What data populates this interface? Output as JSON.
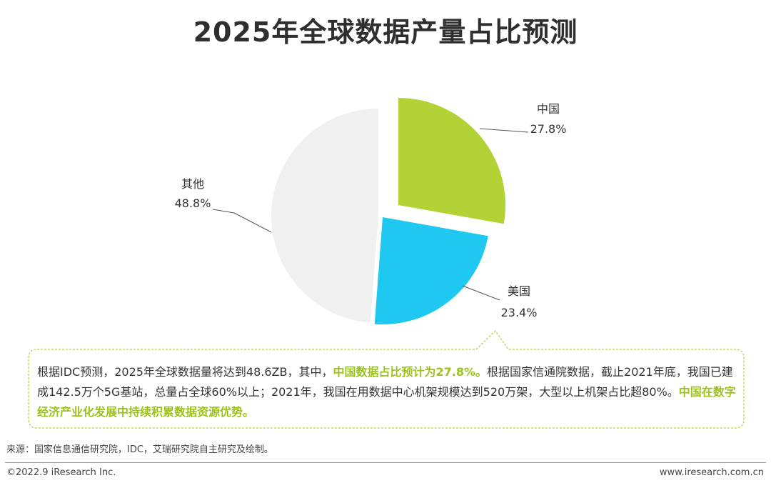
{
  "chart_data": {
    "type": "pie",
    "title": "2025年全球数据产量占比预测",
    "slices": [
      {
        "name": "中国",
        "value": 27.8,
        "value_label": "27.8%",
        "color": "#b2d235",
        "exploded": true
      },
      {
        "name": "美国",
        "value": 23.4,
        "value_label": "23.4%",
        "color": "#1ec8f0",
        "exploded": true
      },
      {
        "name": "其他",
        "value": 48.8,
        "value_label": "48.8%",
        "color": "#f0f0f0",
        "exploded": false
      }
    ]
  },
  "callout": {
    "p1": "根据IDC预测，2025年全球数据量将达到48.6ZB，其中，",
    "h1": "中国数据占比预计为27.8%。",
    "p2": "根据国家信通院数据，截止2021年底，我国已建成142.5万个5G基站，总量占全球60%以上；2021年，我国在用数据中心机架规模达到520万架，大型以上机架占比超80%。",
    "h2": "中国在数字经济产业化发展中持续积累数据资源优势。",
    "border_color": "#b2d235"
  },
  "footer": {
    "source": "来源：国家信息通信研究院，IDC，艾瑞研究院自主研究及绘制。",
    "copyright": "©2022.9 iResearch Inc.",
    "website": "www.iresearch.com.cn"
  }
}
